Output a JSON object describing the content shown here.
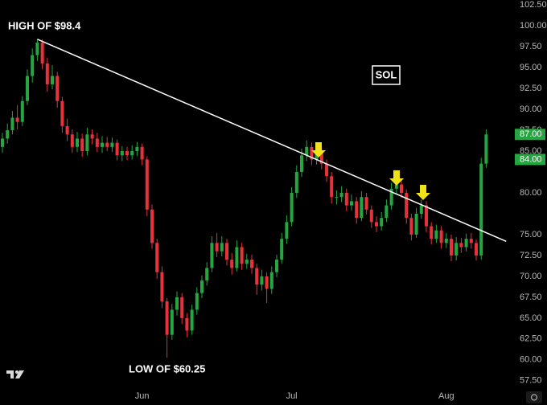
{
  "chart_data": {
    "type": "candlestick",
    "title": "SOL",
    "annotations": [
      "HIGH OF $98.4",
      "LOW OF $60.25"
    ],
    "up_color": "#26a641",
    "down_color": "#e5323b",
    "categories": [
      null,
      null,
      null,
      null,
      null,
      null,
      null,
      null,
      null,
      null,
      null,
      null,
      null,
      null,
      null,
      null,
      null,
      null,
      null,
      null,
      null,
      null,
      null,
      null,
      null,
      null,
      null,
      null,
      "Jun",
      null,
      null,
      null,
      null,
      null,
      null,
      null,
      null,
      null,
      null,
      null,
      null,
      null,
      null,
      null,
      null,
      null,
      null,
      null,
      null,
      null,
      null,
      null,
      null,
      null,
      null,
      null,
      null,
      null,
      "Jul",
      null,
      null,
      null,
      null,
      null,
      null,
      null,
      null,
      null,
      null,
      null,
      null,
      null,
      null,
      null,
      null,
      null,
      null,
      null,
      null,
      null,
      null,
      null,
      null,
      null,
      null,
      null,
      null,
      null,
      null,
      "Aug",
      null,
      null,
      null,
      null,
      null,
      null,
      null,
      null
    ],
    "open": [
      85.5,
      86.5,
      87.5,
      89,
      88.5,
      91,
      94,
      96.5,
      98,
      95.5,
      93,
      94,
      91,
      88,
      87,
      85.5,
      86.5,
      85,
      87,
      86.5,
      85.5,
      86,
      85.5,
      86,
      84.5,
      85,
      84.5,
      85,
      85.5,
      84,
      78,
      74,
      70.5,
      67,
      63,
      66,
      67.5,
      65,
      63.5,
      66,
      68,
      69.5,
      71,
      74,
      73,
      74,
      72,
      71,
      73.5,
      71.5,
      72,
      71,
      69,
      70,
      68.5,
      70.5,
      72,
      74.5,
      76.5,
      80,
      82.5,
      84.5,
      85.5,
      84,
      85,
      83.5,
      82,
      79.5,
      79.5,
      80,
      78.5,
      79,
      77,
      79.5,
      78,
      76.5,
      76,
      77,
      78.5,
      80.5,
      81,
      80,
      77,
      75,
      77.5,
      78.5,
      76,
      74.5,
      75.5,
      74,
      74.5,
      72.5,
      74,
      73.5,
      74.5,
      74,
      72.5,
      83.5
    ],
    "high": [
      87.2,
      88.3,
      89.8,
      90.5,
      91.6,
      94.8,
      97.3,
      98.4,
      98.4,
      96.2,
      95.3,
      94.5,
      91.5,
      88.9,
      87.6,
      87.3,
      87.1,
      87.8,
      87.6,
      87.2,
      86.8,
      86.7,
      86.6,
      86.4,
      85.6,
      85.5,
      85.7,
      86.1,
      85.9,
      84.4,
      78.6,
      74.5,
      71.2,
      67.4,
      66.7,
      68.2,
      68,
      65.6,
      66.6,
      68.7,
      70.1,
      71.7,
      74.8,
      75.2,
      74.8,
      74.5,
      72.8,
      74.3,
      74,
      72.7,
      72.6,
      71.5,
      70.8,
      70.5,
      71.2,
      72.6,
      75.2,
      77.3,
      80.7,
      83.3,
      85.3,
      86.3,
      86,
      85.8,
      85.5,
      84,
      82.5,
      80.3,
      80.8,
      80.5,
      79.8,
      79.5,
      80.2,
      80,
      78.5,
      77.2,
      77.7,
      79.2,
      81.2,
      81.7,
      81.5,
      80.4,
      77.5,
      78.2,
      79.2,
      79,
      76.5,
      76.2,
      76,
      75.2,
      75,
      74.7,
      74.6,
      75.1,
      75.2,
      74.4,
      84.2,
      87.6
    ],
    "low": [
      84.8,
      85.9,
      87,
      87.6,
      88,
      90.5,
      93.2,
      95.8,
      94.8,
      92.1,
      92.4,
      90.2,
      87.2,
      86.2,
      84.8,
      84.9,
      84.3,
      84.5,
      85.8,
      84.9,
      84.8,
      85,
      84.9,
      83.9,
      83.8,
      83.9,
      84,
      84.4,
      83.3,
      77.2,
      73.3,
      69.7,
      66.2,
      60.25,
      62.4,
      65.3,
      64.3,
      62.7,
      63,
      65.4,
      67.4,
      68.9,
      70.5,
      72.3,
      72.4,
      71.3,
      70.2,
      70.6,
      70.8,
      70.9,
      70.3,
      67.8,
      68.3,
      66.8,
      67.9,
      69.9,
      71.5,
      73.9,
      76,
      79.4,
      81.9,
      83.8,
      83.3,
      83.4,
      82.8,
      81.3,
      78.7,
      78.6,
      78.9,
      77.8,
      77.9,
      76.3,
      76.6,
      77.4,
      75.8,
      75.3,
      75.5,
      76.5,
      78,
      79.8,
      79.4,
      76.3,
      74.3,
      74.6,
      76.9,
      75.3,
      73.8,
      74,
      73.3,
      73.4,
      71.8,
      71.9,
      72.8,
      73,
      73.3,
      71.9,
      72,
      83
    ],
    "close": [
      86.5,
      87.5,
      89,
      88.5,
      91,
      94,
      96.5,
      98,
      95.5,
      93,
      94,
      91,
      88,
      87,
      85.5,
      86.5,
      85,
      87,
      86.5,
      85.5,
      86,
      85.5,
      86,
      84.5,
      85,
      84.5,
      85,
      85.5,
      84,
      78,
      74,
      70.5,
      67,
      63,
      66,
      67.5,
      65,
      63.5,
      66,
      68,
      69.5,
      71,
      74,
      73,
      74,
      72,
      71,
      73.5,
      71.5,
      72,
      71,
      69,
      70,
      68.5,
      70.5,
      72,
      74.5,
      76.5,
      80,
      82.5,
      84.5,
      85.5,
      84,
      85,
      83.5,
      82,
      79.5,
      79.5,
      80,
      78.5,
      79,
      77,
      79.5,
      78,
      76.5,
      76,
      77,
      78.5,
      80.5,
      81,
      80,
      77,
      75,
      77.5,
      78.5,
      76,
      74.5,
      75.5,
      74,
      74.5,
      72.5,
      74,
      73.5,
      74.5,
      74,
      72.5,
      83.5,
      87
    ],
    "trendline": {
      "x": [
        7,
        101
      ],
      "y": [
        98.4,
        74.2
      ],
      "color": "#ffffff"
    },
    "price_markers": [
      {
        "value": 87,
        "label": "87.00"
      },
      {
        "value": 84,
        "label": "84.00"
      }
    ],
    "marker_color": "#26a641",
    "ylim": [
      56.9,
      103.1
    ],
    "yticks": [
      {
        "value": 57.5,
        "label": "57.50"
      },
      {
        "value": 60,
        "label": "60.00"
      },
      {
        "value": 62.5,
        "label": "62.50"
      },
      {
        "value": 65,
        "label": "65.00"
      },
      {
        "value": 67.5,
        "label": "67.50"
      },
      {
        "value": 70,
        "label": "70.00"
      },
      {
        "value": 72.5,
        "label": "72.50"
      },
      {
        "value": 75,
        "label": "75.00"
      },
      {
        "value": 80,
        "label": "80.00"
      },
      {
        "value": 85,
        "label": "85.00"
      },
      {
        "value": 87.5,
        "label": "87.50"
      },
      {
        "value": 90,
        "label": "90.00"
      },
      {
        "value": 92.5,
        "label": "92.50"
      },
      {
        "value": 95,
        "label": "95.00"
      },
      {
        "value": 97.5,
        "label": "97.50"
      },
      {
        "value": 100,
        "label": "100.00"
      },
      {
        "value": 102.5,
        "label": "102.50"
      }
    ],
    "grid": false
  }
}
